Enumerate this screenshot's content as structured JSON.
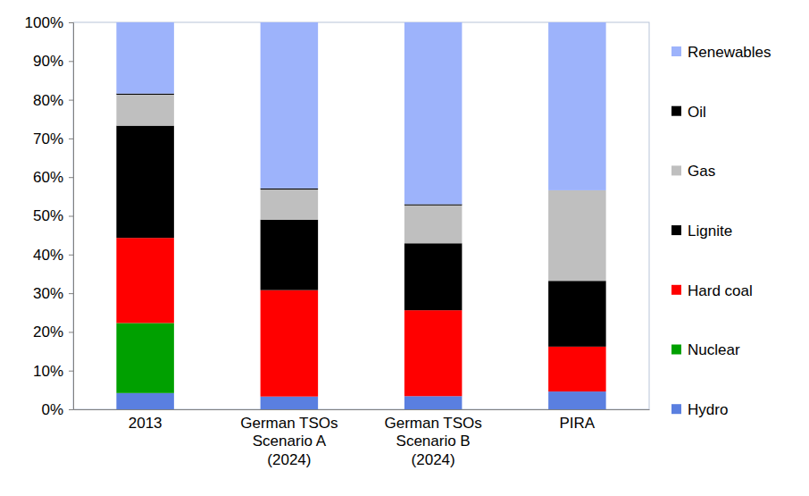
{
  "chart_data": {
    "type": "bar",
    "stacked": true,
    "grid": false,
    "legend": "right",
    "categories": [
      "2013",
      "German TSOs\nScenario A\n(2024)",
      "German TSOs\nScenario B\n(2024)",
      "PIRA"
    ],
    "ylim": [
      0,
      100
    ],
    "yticks": [
      {
        "value": 0,
        "label": "0%"
      },
      {
        "value": 10,
        "label": "10%"
      },
      {
        "value": 20,
        "label": "20%"
      },
      {
        "value": 30,
        "label": "30%"
      },
      {
        "value": 40,
        "label": "40%"
      },
      {
        "value": 50,
        "label": "50%"
      },
      {
        "value": 60,
        "label": "60%"
      },
      {
        "value": 70,
        "label": "70%"
      },
      {
        "value": 80,
        "label": "80%"
      },
      {
        "value": 90,
        "label": "90%"
      },
      {
        "value": 100,
        "label": "100%"
      }
    ],
    "series": [
      {
        "name": "Hydro",
        "color": "#5a7fe0",
        "values": [
          4.2,
          3.3,
          3.4,
          4.6
        ]
      },
      {
        "name": "Nuclear",
        "color": "#00a000",
        "values": [
          18.1,
          0,
          0,
          0
        ]
      },
      {
        "name": "Hard coal",
        "color": "#ff0000",
        "values": [
          22.0,
          27.5,
          22.2,
          11.6
        ]
      },
      {
        "name": "Lignite",
        "color": "#000000",
        "values": [
          29.0,
          18.2,
          17.3,
          17.0
        ]
      },
      {
        "name": "Gas",
        "color": "#bfbfbf",
        "values": [
          8.0,
          7.8,
          9.8,
          23.4
        ]
      },
      {
        "name": "Oil",
        "color": "#000000",
        "values": [
          0.3,
          0.3,
          0.3,
          0
        ]
      },
      {
        "name": "Renewables",
        "color": "#9db3fb",
        "values": [
          18.4,
          42.9,
          47.0,
          43.4
        ]
      }
    ]
  }
}
